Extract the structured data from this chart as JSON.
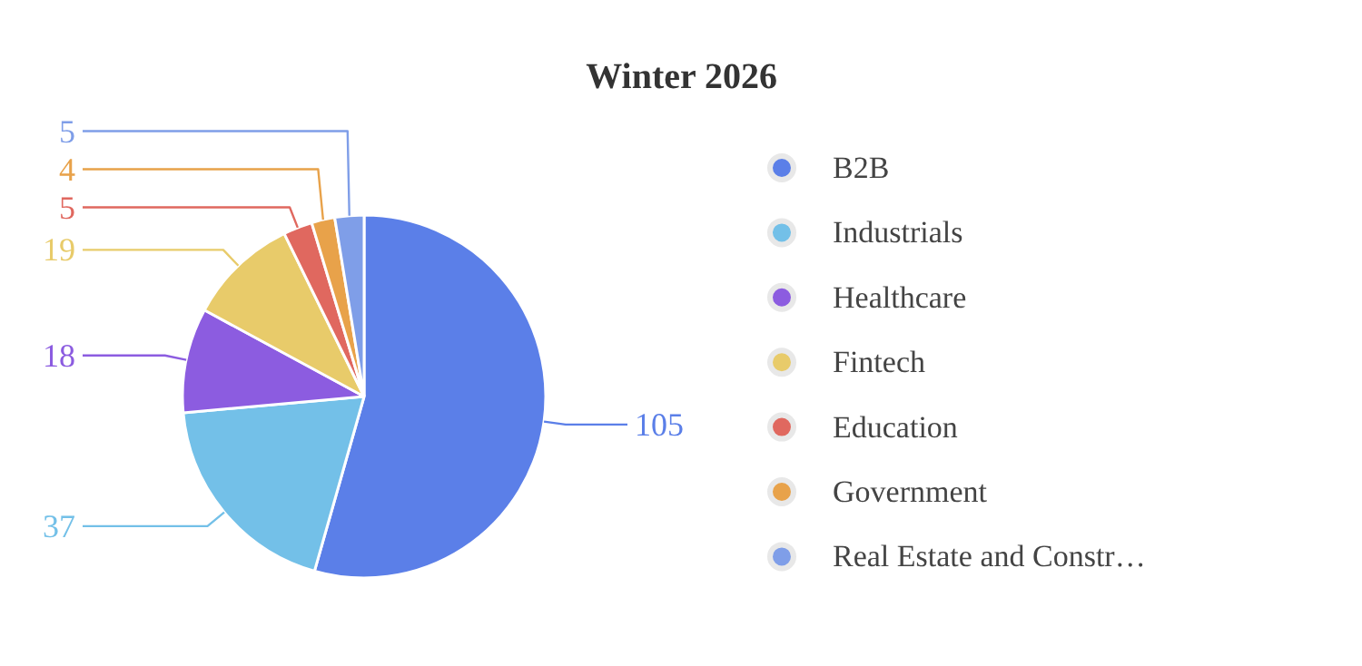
{
  "chart_data": {
    "type": "pie",
    "title": "Winter 2026",
    "categories": [
      "B2B",
      "Industrials",
      "Healthcare",
      "Fintech",
      "Education",
      "Government",
      "Real Estate and Constr…"
    ],
    "values": [
      105,
      37,
      18,
      19,
      5,
      4,
      5
    ],
    "colors": [
      "#5b7fe8",
      "#73c0e8",
      "#8c5ce0",
      "#e8cb6a",
      "#e0685f",
      "#e8a24a",
      "#7f9ee8"
    ],
    "data_labels": true,
    "legend": "right"
  }
}
